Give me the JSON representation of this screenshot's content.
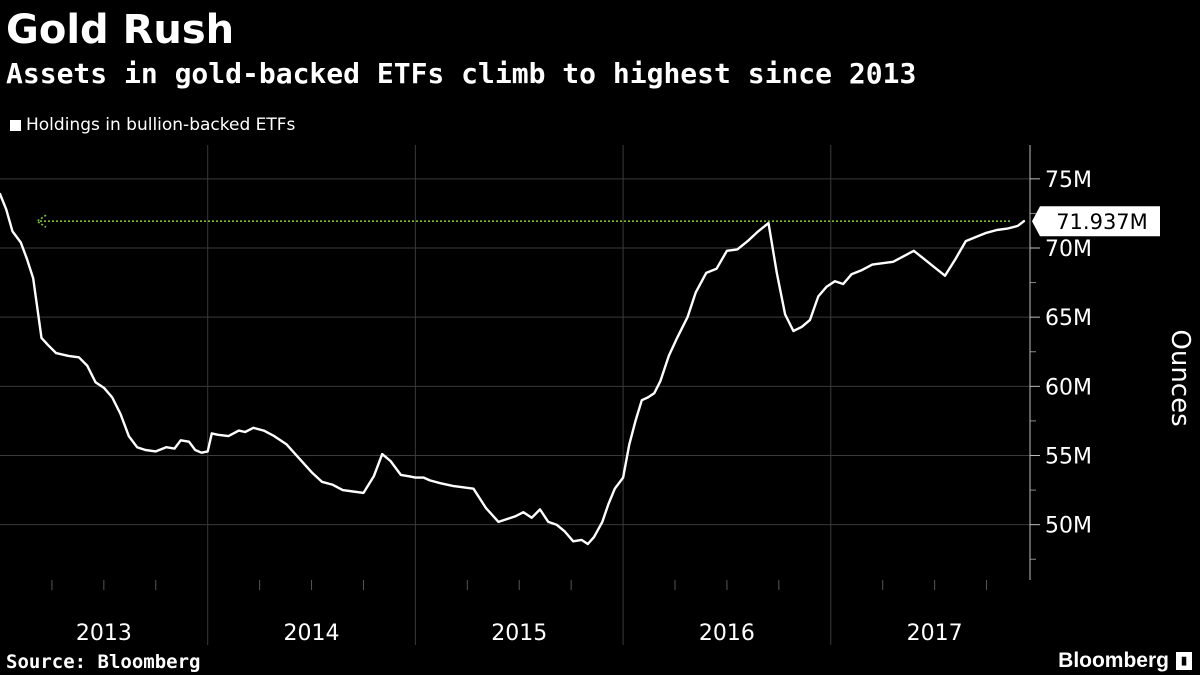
{
  "header": {
    "title": "Gold Rush",
    "subtitle": "Assets in gold-backed ETFs climb to highest since 2013"
  },
  "footer": {
    "source": "Source: Bloomberg",
    "brand": "Bloomberg"
  },
  "colors": {
    "background": "#000000",
    "series": "#ffffff",
    "grid": "#3a3a3a",
    "reference_line": "#7bc043"
  },
  "chart_data": {
    "type": "line",
    "title": "Gold Rush",
    "subtitle": "Assets in gold-backed ETFs climb to highest since 2013",
    "xlabel": "",
    "ylabel": "Ounces",
    "y_axis_position": "right",
    "ylim": [
      46,
      76
    ],
    "xlim": [
      2013.0,
      2017.94
    ],
    "y_ticks": [
      {
        "value": 50,
        "label": "50M"
      },
      {
        "value": 55,
        "label": "55M"
      },
      {
        "value": 60,
        "label": "60M"
      },
      {
        "value": 65,
        "label": "65M"
      },
      {
        "value": 70,
        "label": "70M"
      },
      {
        "value": 75,
        "label": "75M"
      }
    ],
    "x_ticks": [
      {
        "value": 2013.5,
        "label": "2013"
      },
      {
        "value": 2014.5,
        "label": "2014"
      },
      {
        "value": 2015.5,
        "label": "2015"
      },
      {
        "value": 2016.5,
        "label": "2016"
      },
      {
        "value": 2017.5,
        "label": "2017"
      }
    ],
    "x_dividers": [
      2014,
      2015,
      2016,
      2017
    ],
    "grid": true,
    "legend": "top-left",
    "series": [
      {
        "name": "Holdings in bullion-backed ETFs",
        "color": "#ffffff",
        "x": [
          2013.0,
          2013.03,
          2013.06,
          2013.1,
          2013.13,
          2013.16,
          2013.2,
          2013.23,
          2013.27,
          2013.33,
          2013.38,
          2013.42,
          2013.46,
          2013.5,
          2013.54,
          2013.58,
          2013.62,
          2013.66,
          2013.7,
          2013.75,
          2013.8,
          2013.84,
          2013.87,
          2013.91,
          2013.94,
          2013.97,
          2014.0,
          2014.02,
          2014.05,
          2014.1,
          2014.15,
          2014.18,
          2014.22,
          2014.27,
          2014.32,
          2014.38,
          2014.44,
          2014.5,
          2014.55,
          2014.6,
          2014.65,
          2014.7,
          2014.75,
          2014.8,
          2014.84,
          2014.88,
          2014.93,
          2014.97,
          2015.0,
          2015.04,
          2015.07,
          2015.12,
          2015.18,
          2015.23,
          2015.28,
          2015.34,
          2015.4,
          2015.44,
          2015.48,
          2015.52,
          2015.56,
          2015.6,
          2015.64,
          2015.68,
          2015.72,
          2015.76,
          2015.8,
          2015.83,
          2015.86,
          2015.9,
          2015.93,
          2015.96,
          2016.0,
          2016.03,
          2016.06,
          2016.09,
          2016.12,
          2016.15,
          2016.18,
          2016.22,
          2016.26,
          2016.31,
          2016.35,
          2016.4,
          2016.45,
          2016.5,
          2016.55,
          2016.6,
          2016.65,
          2016.7,
          2016.74,
          2016.78,
          2016.82,
          2016.86,
          2016.9,
          2016.94,
          2016.98,
          2017.02,
          2017.06,
          2017.1,
          2017.15,
          2017.2,
          2017.25,
          2017.3,
          2017.35,
          2017.4,
          2017.45,
          2017.5,
          2017.55,
          2017.6,
          2017.65,
          2017.7,
          2017.75,
          2017.8,
          2017.85,
          2017.9,
          2017.93
        ],
        "values": [
          73.9,
          72.8,
          71.2,
          70.4,
          69.2,
          67.8,
          63.5,
          63.0,
          62.4,
          62.2,
          62.1,
          61.5,
          60.3,
          59.9,
          59.2,
          58.0,
          56.4,
          55.6,
          55.4,
          55.3,
          55.6,
          55.5,
          56.1,
          56.0,
          55.4,
          55.2,
          55.3,
          56.6,
          56.5,
          56.4,
          56.8,
          56.7,
          57.0,
          56.8,
          56.4,
          55.8,
          54.8,
          53.8,
          53.1,
          52.9,
          52.5,
          52.4,
          52.3,
          53.5,
          55.1,
          54.6,
          53.6,
          53.5,
          53.4,
          53.4,
          53.2,
          53.0,
          52.8,
          52.7,
          52.6,
          51.2,
          50.2,
          50.4,
          50.6,
          50.9,
          50.5,
          51.1,
          50.2,
          50.0,
          49.5,
          48.8,
          48.9,
          48.6,
          49.1,
          50.2,
          51.5,
          52.6,
          53.4,
          55.8,
          57.5,
          59.0,
          59.2,
          59.5,
          60.4,
          62.2,
          63.5,
          65.0,
          66.8,
          68.2,
          68.5,
          69.8,
          69.9,
          70.5,
          71.2,
          71.8,
          68.2,
          65.2,
          64.0,
          64.3,
          64.8,
          66.5,
          67.2,
          67.6,
          67.4,
          68.1,
          68.4,
          68.8,
          68.9,
          69.0,
          69.4,
          69.8,
          69.2,
          68.6,
          68.0,
          69.2,
          70.5,
          70.8,
          71.1,
          71.3,
          71.4,
          71.6,
          71.937
        ]
      }
    ],
    "reference_line": {
      "y": 71.937,
      "style": "dotted",
      "color": "#7bc043",
      "arrow": "left"
    },
    "last_value_label": "71.937M"
  }
}
